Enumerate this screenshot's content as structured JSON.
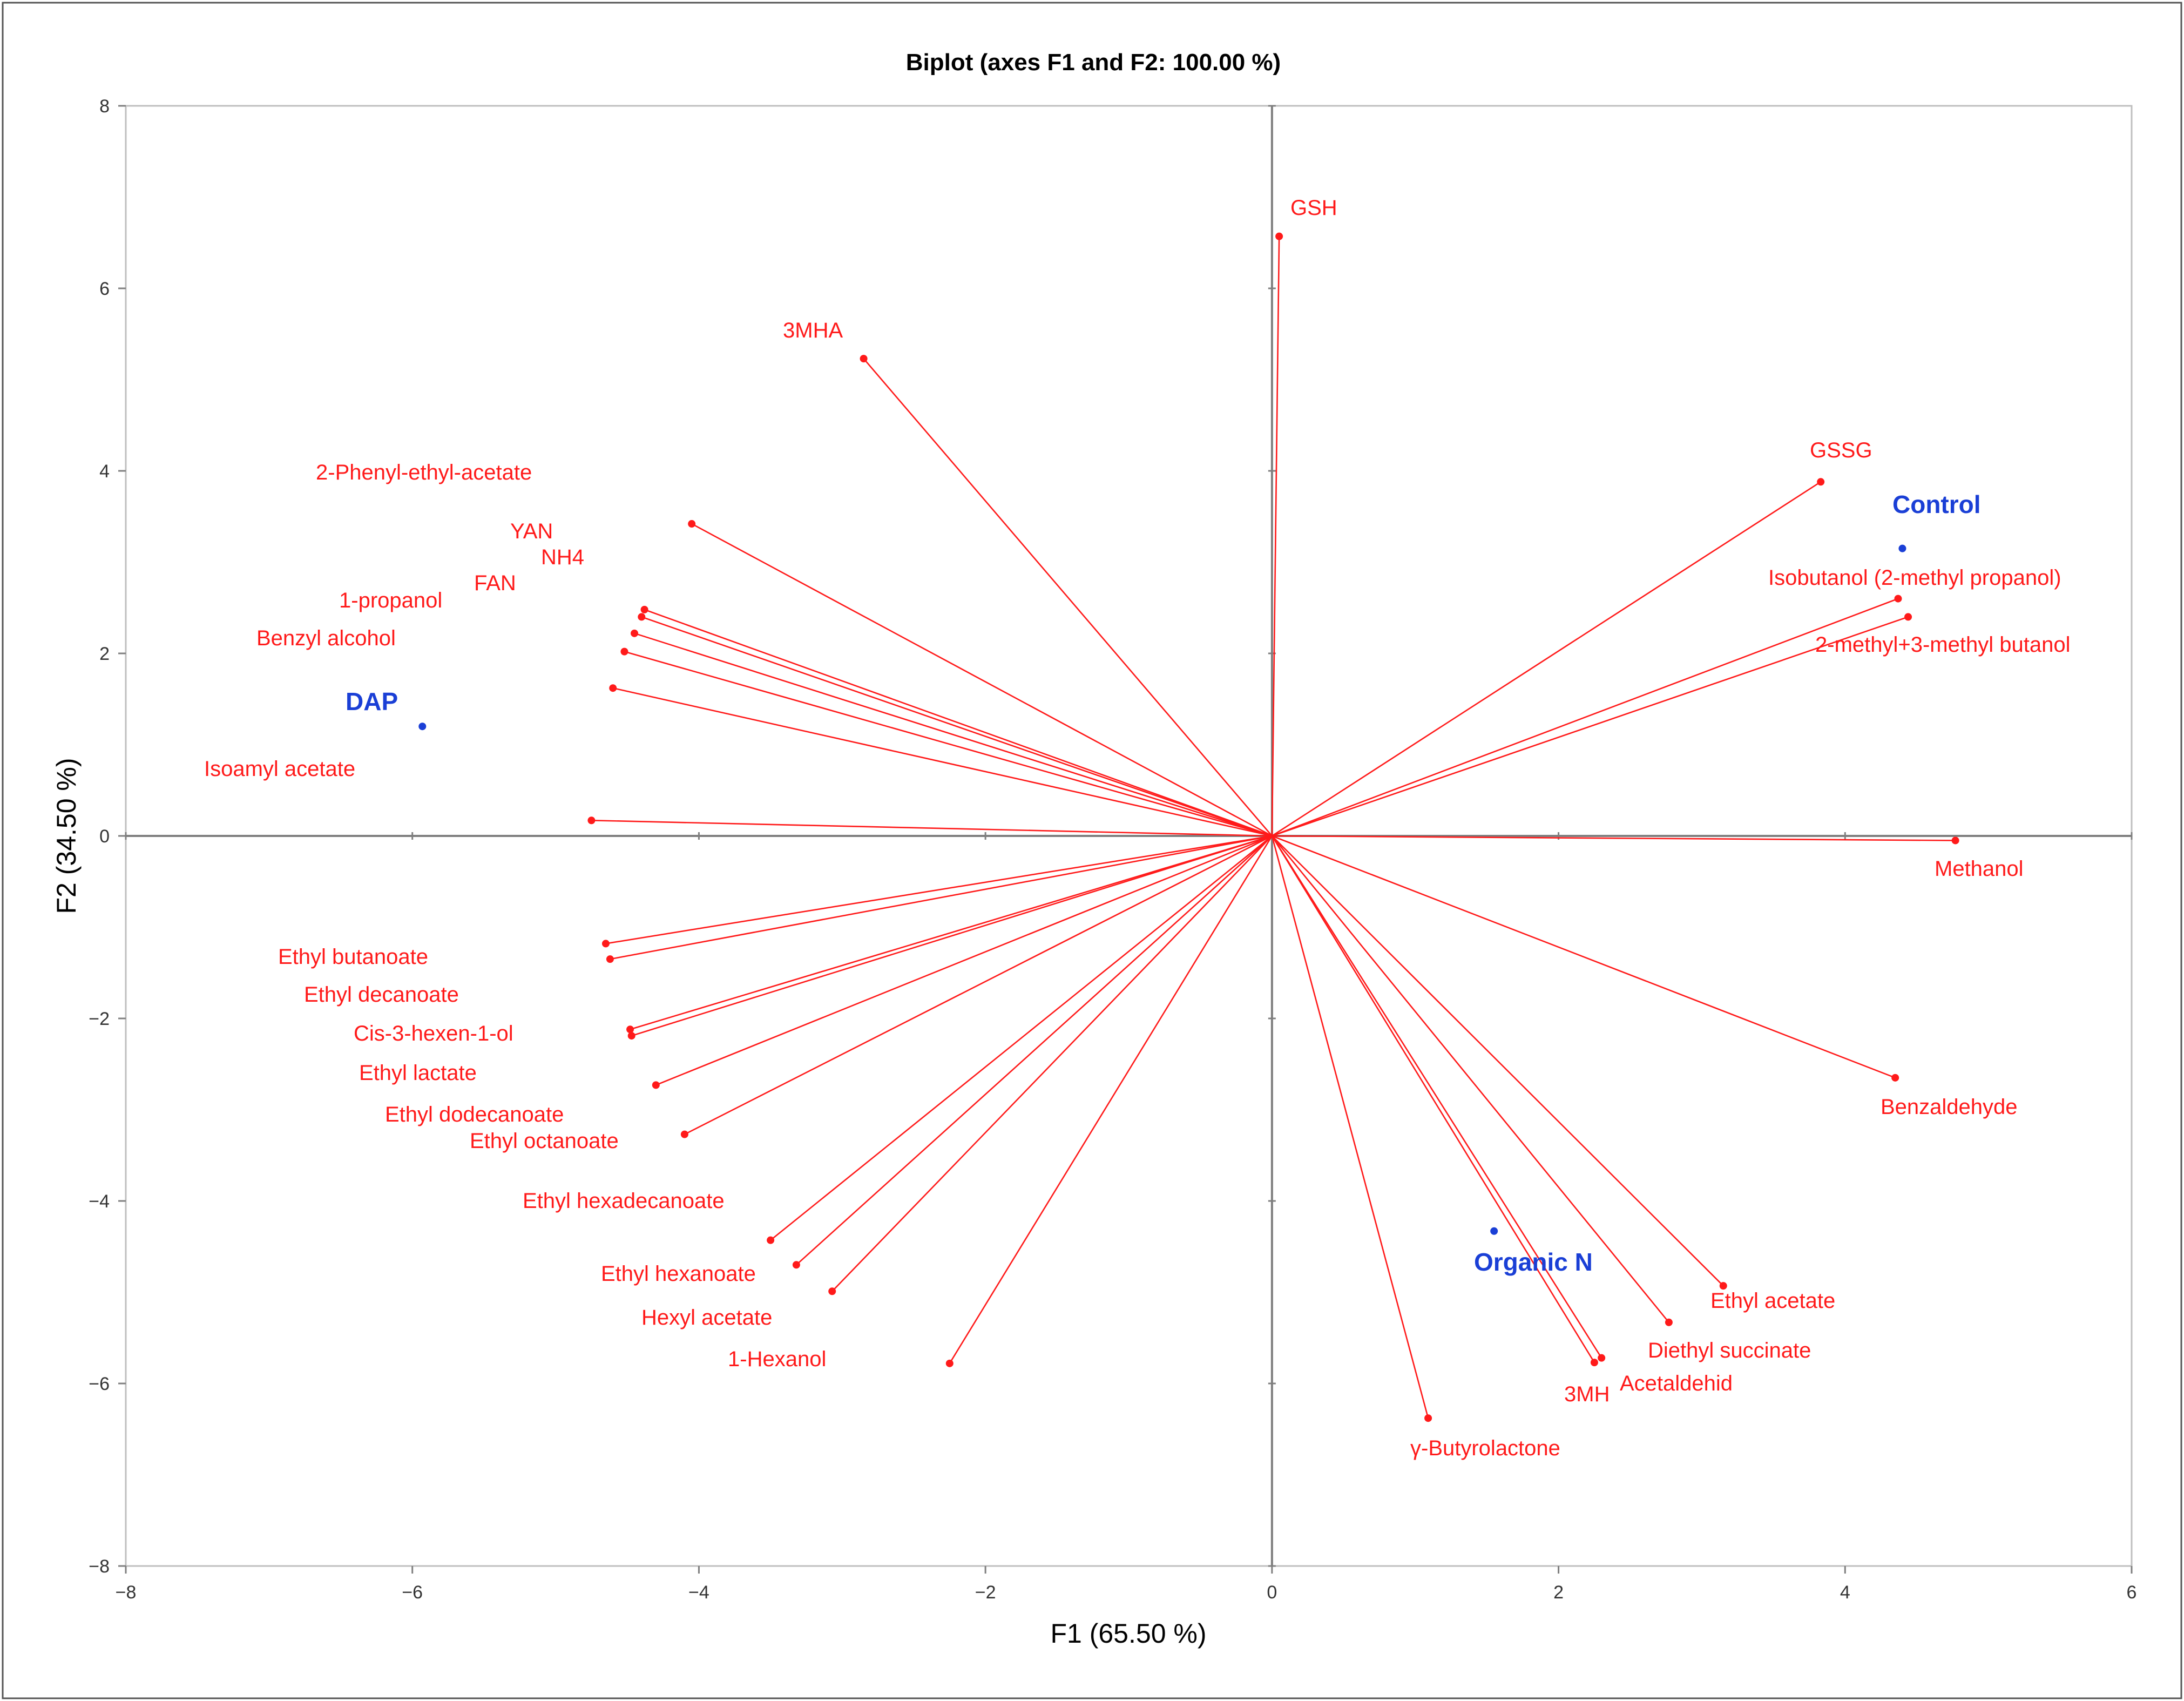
{
  "chart_data": {
    "type": "scatter",
    "title": "Biplot (axes F1 and F2: 100.00 %)",
    "xlabel": "F1 (65.50 %)",
    "ylabel": "F2 (34.50 %)",
    "xlim": [
      -8,
      6
    ],
    "ylim": [
      -8,
      8
    ],
    "xticks": [
      -8,
      -6,
      -4,
      -2,
      0,
      2,
      4,
      6
    ],
    "yticks": [
      -8,
      -6,
      -4,
      -2,
      0,
      2,
      4,
      6,
      8
    ],
    "xtick_labels": [
      "−8",
      "−6",
      "−4",
      "−2",
      "0",
      "2",
      "4",
      "6"
    ],
    "ytick_labels": [
      "−8",
      "−6",
      "−4",
      "−2",
      "0",
      "2",
      "4",
      "6",
      "8"
    ],
    "variables_color": "#ff1a1a",
    "observations_color": "#1a3fd6",
    "variables": [
      {
        "name": "GSH",
        "x": 0.05,
        "y": 6.57
      },
      {
        "name": "3MHA",
        "x": -2.85,
        "y": 5.23
      },
      {
        "name": "2-Phenyl-ethyl-acetate",
        "x": -4.05,
        "y": 3.42
      },
      {
        "name": "YAN",
        "x": -4.38,
        "y": 2.48
      },
      {
        "name": "NH4",
        "x": -4.4,
        "y": 2.4
      },
      {
        "name": "FAN",
        "x": -4.45,
        "y": 2.22
      },
      {
        "name": "1-propanol",
        "x": -4.52,
        "y": 2.02
      },
      {
        "name": "Benzyl alcohol",
        "x": -4.6,
        "y": 1.62
      },
      {
        "name": "Isoamyl acetate",
        "x": -4.75,
        "y": 0.17
      },
      {
        "name": "GSSG",
        "x": 3.83,
        "y": 3.88
      },
      {
        "name": "Isobutanol (2-methyl propanol)",
        "x": 4.37,
        "y": 2.6
      },
      {
        "name": "2-methyl+3-methyl butanol",
        "x": 4.44,
        "y": 2.4
      },
      {
        "name": "Methanol",
        "x": 4.77,
        "y": -0.05
      },
      {
        "name": "Benzaldehyde",
        "x": 4.35,
        "y": -2.65
      },
      {
        "name": "Ethyl acetate",
        "x": 3.15,
        "y": -4.93
      },
      {
        "name": "Diethyl succinate",
        "x": 2.77,
        "y": -5.33
      },
      {
        "name": "Acetaldehid",
        "x": 2.3,
        "y": -5.72
      },
      {
        "name": "3MH",
        "x": 2.25,
        "y": -5.77
      },
      {
        "name": "γ-Butyrolactone",
        "x": 1.09,
        "y": -6.38
      },
      {
        "name": "Ethyl butanoate",
        "x": -4.65,
        "y": -1.18
      },
      {
        "name": "Ethyl decanoate",
        "x": -4.62,
        "y": -1.35
      },
      {
        "name": "Cis-3-hexen-1-ol",
        "x": -4.48,
        "y": -2.12
      },
      {
        "name": "Ethyl lactate",
        "x": -4.47,
        "y": -2.19
      },
      {
        "name": "Ethyl dodecanoate",
        "x": -4.3,
        "y": -2.73
      },
      {
        "name": "Ethyl octanoate",
        "x": -4.1,
        "y": -3.27
      },
      {
        "name": "Ethyl hexadecanoate",
        "x": -3.5,
        "y": -4.43
      },
      {
        "name": "Ethyl hexanoate",
        "x": -3.32,
        "y": -4.7
      },
      {
        "name": "Hexyl acetate",
        "x": -3.07,
        "y": -4.99
      },
      {
        "name": "1-Hexanol",
        "x": -2.25,
        "y": -5.78
      }
    ],
    "observations": [
      {
        "name": "DAP",
        "x": -5.93,
        "y": 1.2
      },
      {
        "name": "Control",
        "x": 4.4,
        "y": 3.15
      },
      {
        "name": "Organic N",
        "x": 1.55,
        "y": -4.33
      }
    ]
  }
}
